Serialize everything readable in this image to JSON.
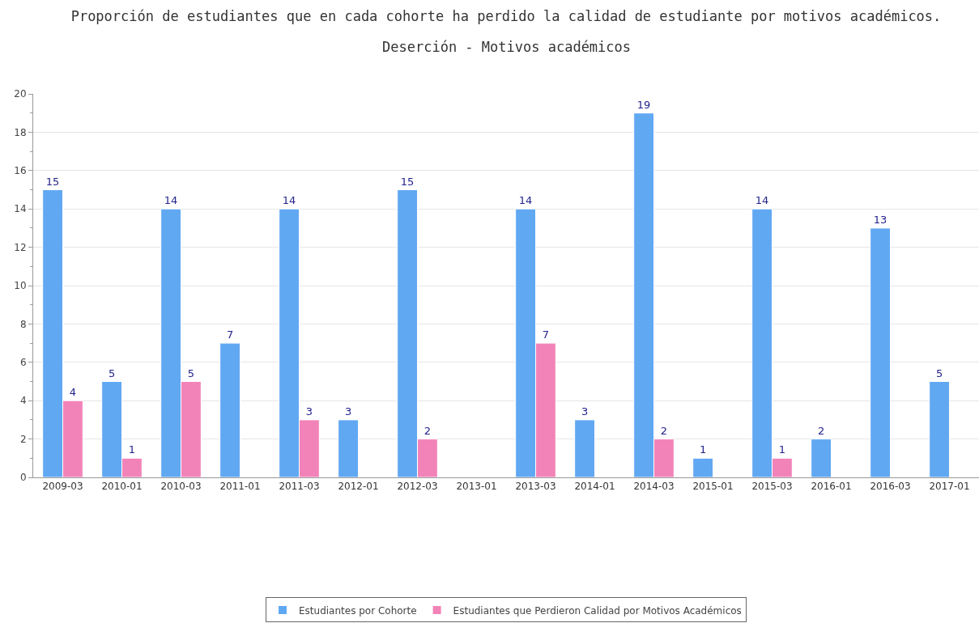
{
  "chart_data": {
    "type": "bar",
    "title": "Proporción de estudiantes que en cada cohorte ha perdido la calidad de estudiante por motivos académicos.",
    "subtitle": "Deserción - Motivos académicos",
    "categories": [
      "2009-03",
      "2010-01",
      "2010-03",
      "2011-01",
      "2011-03",
      "2012-01",
      "2012-03",
      "2013-01",
      "2013-03",
      "2014-01",
      "2014-03",
      "2015-01",
      "2015-03",
      "2016-01",
      "2016-03",
      "2017-01"
    ],
    "series": [
      {
        "name": "Estudiantes por Cohorte",
        "color": "#61a8f2",
        "values": [
          15,
          5,
          14,
          7,
          14,
          3,
          15,
          null,
          14,
          3,
          19,
          1,
          14,
          2,
          13,
          5
        ]
      },
      {
        "name": "Estudiantes que Perdieron Calidad por Motivos Académicos",
        "color": "#f283b9",
        "values": [
          4,
          1,
          5,
          null,
          3,
          null,
          2,
          null,
          7,
          null,
          2,
          null,
          1,
          null,
          null,
          null
        ]
      }
    ],
    "ylim": [
      0,
      20
    ],
    "yticks": [
      0,
      {
        "value": 1,
        "label": null
      },
      2,
      {
        "value": 3,
        "label": null
      },
      4,
      {
        "value": 5,
        "label": null
      },
      6,
      {
        "value": 7,
        "label": null
      },
      8,
      {
        "value": 9,
        "label": null
      },
      10,
      {
        "value": 11,
        "label": null
      },
      12,
      {
        "value": 13,
        "label": null
      },
      14,
      {
        "value": 15,
        "label": null
      },
      16,
      {
        "value": 17,
        "label": null
      },
      18,
      {
        "value": 19,
        "label": null
      },
      20
    ],
    "grid": "y",
    "legend": "bottom",
    "data_labels": true
  }
}
